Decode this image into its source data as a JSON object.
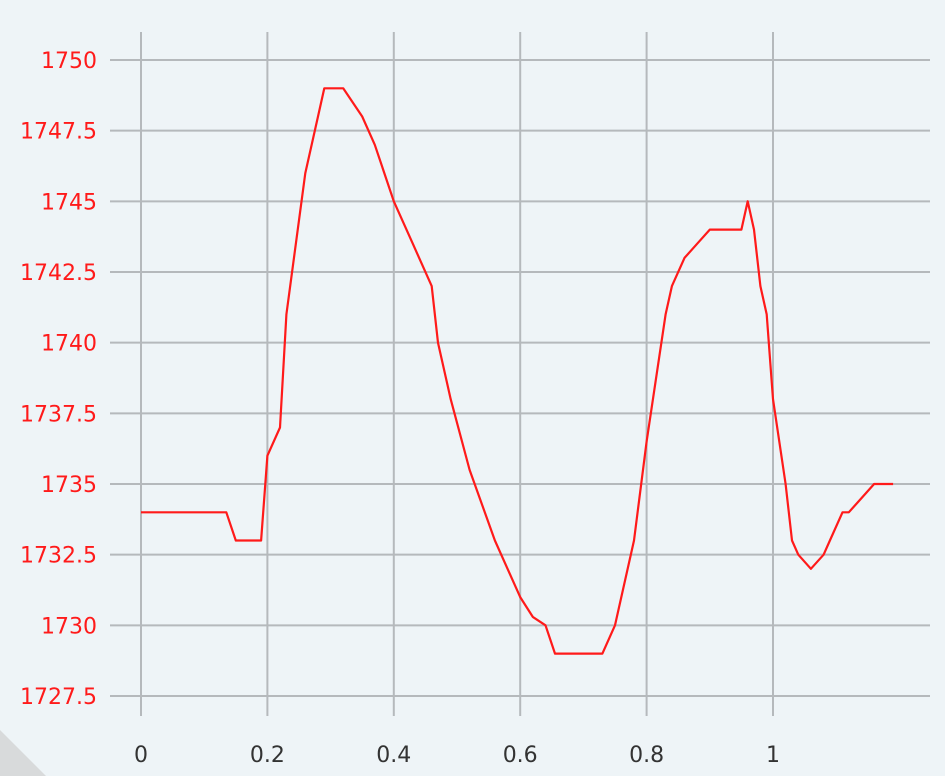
{
  "chart_data": {
    "type": "line",
    "title": "",
    "xlabel": "",
    "ylabel": "",
    "xlim": [
      0,
      1.25
    ],
    "ylim": [
      1726.9,
      1751.2
    ],
    "grid": true,
    "x_ticks": [
      0,
      0.2,
      0.4,
      0.6,
      0.8,
      1
    ],
    "x_tick_labels": [
      "0",
      "0.2",
      "0.4",
      "0.6",
      "0.8",
      "1"
    ],
    "y_ticks": [
      1727.5,
      1730,
      1732.5,
      1735,
      1737.5,
      1740,
      1742.5,
      1745,
      1747.5,
      1750
    ],
    "y_tick_labels": [
      "1727.5",
      "1730",
      "1732.5",
      "1735",
      "1737.5",
      "1740",
      "1742.5",
      "1745",
      "1747.5",
      "1750"
    ],
    "colors": {
      "series": "#ff1a1a",
      "y_tick_text": "#ff1a1a",
      "x_tick_text": "#333333",
      "grid": "#b5b9bc",
      "background": "#eef4f7"
    },
    "series": [
      {
        "x": [
          0,
          0.12,
          0.135,
          0.15,
          0.18,
          0.19,
          0.2,
          0.22,
          0.23,
          0.26,
          0.28,
          0.29,
          0.32,
          0.35,
          0.37,
          0.4,
          0.43,
          0.46,
          0.47,
          0.49,
          0.52,
          0.56,
          0.6,
          0.62,
          0.64,
          0.655,
          0.67,
          0.69,
          0.71,
          0.73,
          0.75,
          0.78,
          0.8,
          0.83,
          0.84,
          0.86,
          0.88,
          0.9,
          0.92,
          0.94,
          0.95,
          0.96,
          0.97,
          0.98,
          0.99,
          1.0,
          1.02,
          1.03,
          1.04,
          1.06,
          1.08,
          1.09,
          1.11,
          1.12,
          1.14,
          1.16,
          1.19
        ],
        "y": [
          1734,
          1734,
          1734,
          1733,
          1733,
          1733,
          1736,
          1737,
          1741,
          1746,
          1748,
          1749,
          1749,
          1748,
          1747,
          1745,
          1743.5,
          1742,
          1740,
          1738,
          1735.5,
          1733,
          1731,
          1730.3,
          1730,
          1729,
          1729,
          1729,
          1729,
          1729,
          1730,
          1733,
          1736.5,
          1741,
          1742,
          1743,
          1743.5,
          1744,
          1744,
          1744,
          1744,
          1745,
          1744,
          1742,
          1741,
          1738,
          1735,
          1733,
          1732.5,
          1732,
          1732.5,
          1733,
          1734,
          1734,
          1734.5,
          1735,
          1735
        ]
      }
    ]
  }
}
